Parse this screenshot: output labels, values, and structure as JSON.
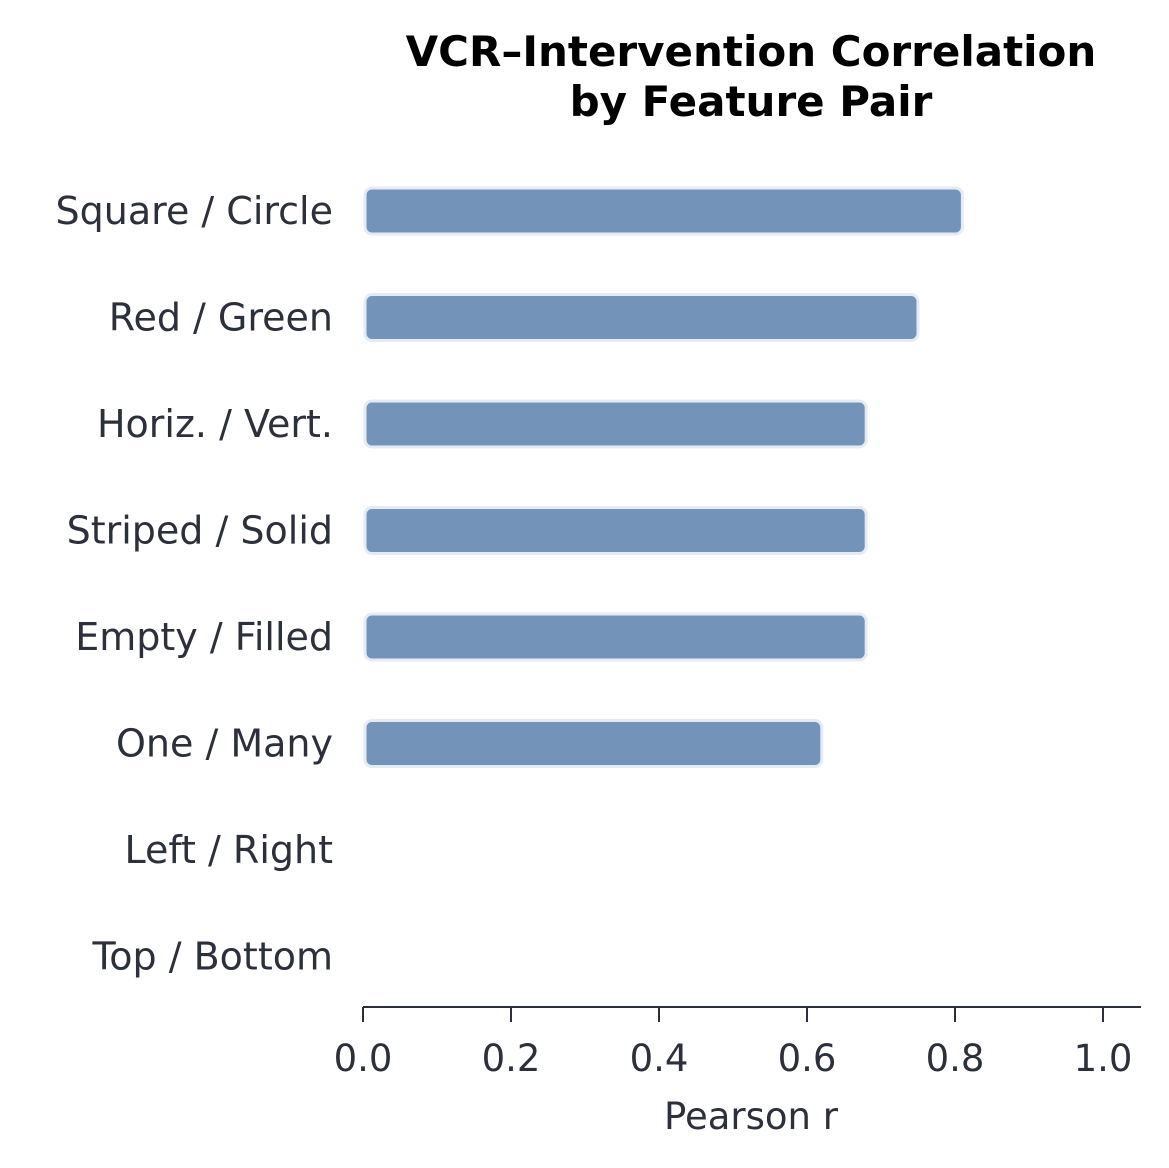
{
  "chart_data": {
    "type": "bar",
    "orientation": "horizontal",
    "title_lines": [
      "VCR–Intervention Correlation",
      "by Feature Pair"
    ],
    "xlabel": "Pearson r",
    "ylabel": "",
    "xlim": [
      0.0,
      1.05
    ],
    "xticks": [
      "0.0",
      "0.2",
      "0.4",
      "0.6",
      "0.8",
      "1.0"
    ],
    "categories": [
      "Square / Circle",
      "Red / Green",
      "Horiz. / Vert.",
      "Striped / Solid",
      "Empty / Filled",
      "One / Many",
      "Left / Right",
      "Top / Bottom"
    ],
    "values": [
      0.81,
      0.75,
      0.68,
      0.68,
      0.68,
      0.62,
      null,
      null
    ],
    "grid": false,
    "colors": {
      "bar": "#7394b8",
      "bar_edge": "#e4ebf5",
      "axis": "#2b303b"
    }
  }
}
